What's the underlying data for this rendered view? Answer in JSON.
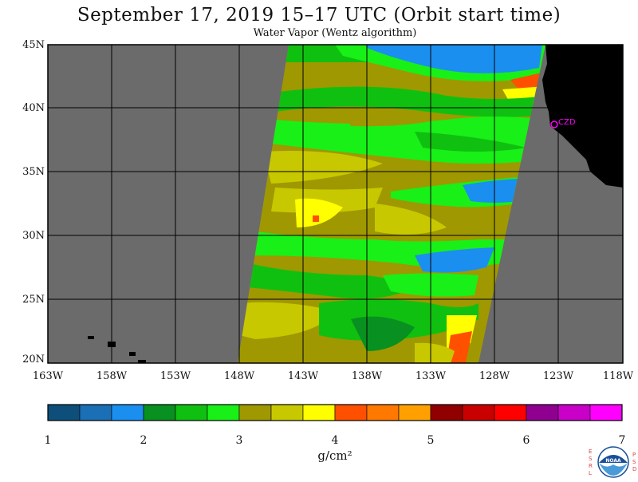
{
  "header": {
    "title": "September 17, 2019  15–17 UTC  (Orbit start time)",
    "subtitle": "Water Vapor (Wentz algorithm)"
  },
  "map": {
    "lat_labels": [
      "45N",
      "40N",
      "35N",
      "30N",
      "25N",
      "20N"
    ],
    "lon_labels": [
      "163W",
      "158W",
      "153W",
      "148W",
      "143W",
      "138W",
      "133W",
      "128W",
      "123W",
      "118W"
    ],
    "station_label": "CZD",
    "colors": {
      "background_gray": "#6b6b6b",
      "land_black": "#000000",
      "grid": "#000000",
      "station": "#ff00ff"
    }
  },
  "colorbar": {
    "ticks": [
      "1",
      "2",
      "3",
      "4",
      "5",
      "6",
      "7"
    ],
    "units": "g/cm²",
    "colors": [
      "#0d4f7a",
      "#1a6fb5",
      "#1a8ff0",
      "#089020",
      "#10c010",
      "#18f018",
      "#a09800",
      "#c8c800",
      "#ffff00",
      "#ff5000",
      "#ff7800",
      "#ffa000",
      "#900000",
      "#c80000",
      "#ff0000",
      "#900090",
      "#c800c8",
      "#ff00ff"
    ]
  },
  "logo": {
    "left_letters": "ESRL",
    "right_letters": "PSD",
    "center_text": "NOAA"
  }
}
